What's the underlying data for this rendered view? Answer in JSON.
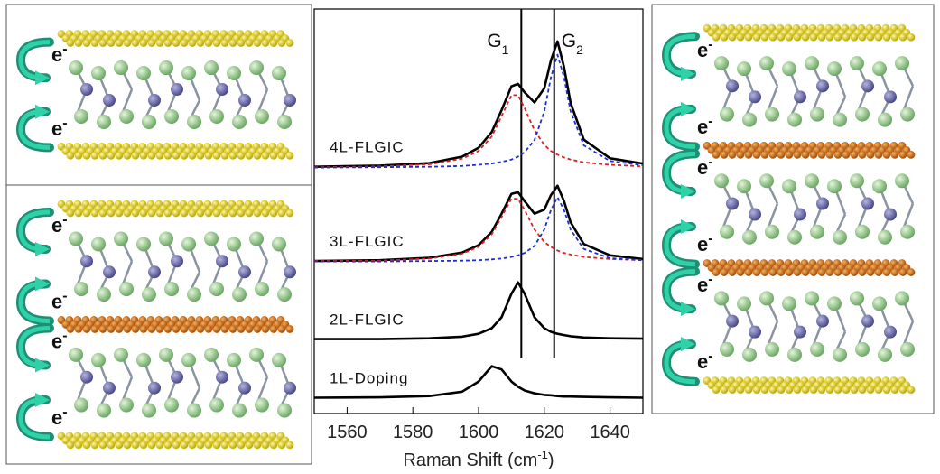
{
  "chart_data": {
    "type": "line",
    "x": [
      1550,
      1570,
      1585,
      1595,
      1600,
      1604,
      1607,
      1610,
      1612,
      1614,
      1617,
      1620,
      1622,
      1624,
      1626,
      1628,
      1632,
      1640,
      1650
    ],
    "xlim": [
      1550,
      1650
    ],
    "xticks": [
      1560,
      1580,
      1600,
      1620,
      1640
    ],
    "ylim": [
      0,
      100
    ],
    "xlabel": "Raman Shift (cm",
    "xlabel_sup": "-1",
    "xlabel_end": ")",
    "vlines": [
      {
        "x": 1613,
        "label": "G",
        "sub": "1"
      },
      {
        "x": 1623,
        "label": "G",
        "sub": "2"
      }
    ],
    "series": [
      {
        "name": "1L-Doping",
        "color": "#000000",
        "values": [
          3.9,
          4.0,
          4.3,
          5.4,
          7.9,
          11.7,
          10.9,
          7.9,
          6.6,
          5.7,
          5.0,
          4.6,
          4.5,
          4.3,
          4.2,
          4.2,
          4.1,
          4.0,
          3.9
        ]
      },
      {
        "name": "2L-FLGIC",
        "color": "#000000",
        "values": [
          18.4,
          18.4,
          18.6,
          19.0,
          19.7,
          21.1,
          23.8,
          29.6,
          32.4,
          29.6,
          23.8,
          21.1,
          20.2,
          19.7,
          19.4,
          19.1,
          18.8,
          18.6,
          18.5
        ]
      },
      {
        "name": "3L-FLGIC",
        "color": "#000000",
        "values": [
          37.7,
          37.9,
          38.5,
          39.8,
          41.6,
          44.9,
          49.4,
          54.3,
          54.7,
          52.5,
          49.4,
          50.4,
          54.0,
          56.3,
          52.5,
          47.3,
          41.9,
          39.1,
          38.2
        ]
      },
      {
        "color": "#e02020",
        "dash": true,
        "values": [
          37.7,
          37.8,
          38.3,
          39.5,
          41.2,
          44.3,
          48.6,
          53.1,
          53.1,
          50.3,
          45.5,
          42.4,
          41.2,
          40.3,
          39.7,
          39.3,
          38.7,
          38.2,
          37.9
        ]
      },
      {
        "color": "#1c2fd0",
        "dash": true,
        "values": [
          37.6,
          37.6,
          37.7,
          37.8,
          37.9,
          38.1,
          38.3,
          38.7,
          39.1,
          39.7,
          41.4,
          45.5,
          50.3,
          53.5,
          50.3,
          45.5,
          40.7,
          38.4,
          37.9
        ]
      },
      {
        "name": "4L-FLGIC",
        "color": "#000000",
        "values": [
          61.0,
          61.3,
          61.9,
          63.5,
          65.7,
          69.6,
          75.0,
          80.9,
          81.5,
          79.4,
          76.9,
          80.4,
          87.3,
          92.0,
          85.7,
          76.8,
          67.7,
          63.1,
          61.8
        ]
      },
      {
        "color": "#e02020",
        "dash": true,
        "values": [
          60.9,
          61.1,
          61.6,
          63.0,
          64.9,
          68.5,
          73.5,
          78.7,
          78.7,
          75.5,
          70.0,
          66.4,
          64.9,
          64.0,
          63.3,
          62.8,
          62.1,
          61.5,
          61.1
        ]
      },
      {
        "color": "#1c2fd0",
        "dash": true,
        "values": [
          60.8,
          60.9,
          61.0,
          61.2,
          61.5,
          61.8,
          62.2,
          62.8,
          63.5,
          64.6,
          67.6,
          74.7,
          83.1,
          88.7,
          83.1,
          74.7,
          66.3,
          62.4,
          61.4
        ]
      }
    ]
  },
  "electron_label": "e",
  "electron_charge": "-",
  "illustrations": [
    {
      "layers": [
        {
          "kind": "sheet",
          "color": "#e3d21c"
        },
        {
          "kind": "molecule"
        },
        {
          "kind": "sheet",
          "color": "#e3d21c"
        }
      ]
    },
    {
      "layers": [
        {
          "kind": "sheet",
          "color": "#e3d21c"
        },
        {
          "kind": "molecule"
        },
        {
          "kind": "sheet",
          "color": "#d9731c"
        },
        {
          "kind": "molecule"
        },
        {
          "kind": "sheet",
          "color": "#e3d21c"
        }
      ]
    },
    {
      "layers": [
        {
          "kind": "sheet",
          "color": "#e3d21c"
        },
        {
          "kind": "molecule"
        },
        {
          "kind": "sheet",
          "color": "#d9731c"
        },
        {
          "kind": "molecule"
        },
        {
          "kind": "sheet",
          "color": "#d9731c"
        },
        {
          "kind": "molecule"
        },
        {
          "kind": "sheet",
          "color": "#e3d21c"
        }
      ]
    }
  ]
}
